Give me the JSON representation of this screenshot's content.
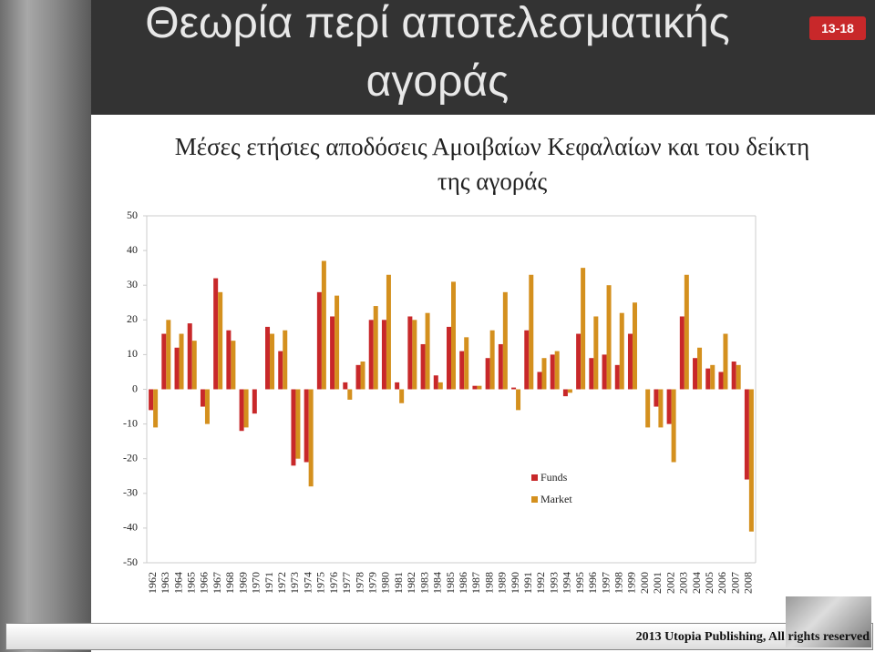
{
  "header": {
    "title": "Θεωρία περί αποτελεσματικής αγοράς",
    "badge": "13-18"
  },
  "footer": {
    "text": "2013 Utopia Publishing, All rights reserved"
  },
  "chart_data": {
    "type": "bar",
    "title": "Μέσες ετήσιες αποδόσεις Αμοιβαίων Κεφαλαίων και του δείκτη της αγοράς",
    "categories": [
      "1962",
      "1963",
      "1964",
      "1965",
      "1966",
      "1967",
      "1968",
      "1969",
      "1970",
      "1971",
      "1972",
      "1973",
      "1974",
      "1975",
      "1976",
      "1977",
      "1978",
      "1979",
      "1980",
      "1981",
      "1982",
      "1983",
      "1984",
      "1985",
      "1986",
      "1987",
      "1988",
      "1989",
      "1990",
      "1991",
      "1992",
      "1993",
      "1994",
      "1995",
      "1996",
      "1997",
      "1998",
      "1999",
      "2000",
      "2001",
      "2002",
      "2003",
      "2004",
      "2005",
      "2006",
      "2007",
      "2008"
    ],
    "series": [
      {
        "name": "Funds",
        "color": "#c8282a",
        "values": [
          -6,
          16,
          12,
          19,
          -5,
          32,
          17,
          -12,
          -7,
          18,
          11,
          -22,
          -21,
          28,
          21,
          2,
          7,
          20,
          20,
          2,
          21,
          13,
          4,
          18,
          11,
          1,
          9,
          13,
          0.5,
          17,
          5,
          10,
          -2,
          16,
          9,
          10,
          7,
          16,
          0,
          -5,
          -10,
          21,
          9,
          6,
          5,
          8,
          -26
        ]
      },
      {
        "name": "Market",
        "color": "#d4901e",
        "values": [
          -11,
          20,
          16,
          14,
          -10,
          28,
          14,
          -11,
          0,
          16,
          17,
          -20,
          -28,
          37,
          27,
          -3,
          8,
          24,
          33,
          -4,
          20,
          22,
          2,
          31,
          15,
          1,
          17,
          28,
          -6,
          33,
          9,
          11,
          -1,
          35,
          21,
          30,
          22,
          25,
          -11,
          -11,
          -21,
          33,
          12,
          7,
          16,
          7,
          -41
        ]
      }
    ],
    "ylim": [
      -50,
      50
    ],
    "yticks": [
      50,
      40,
      30,
      20,
      10,
      0,
      -10,
      -20,
      -30,
      -40,
      -50
    ]
  }
}
